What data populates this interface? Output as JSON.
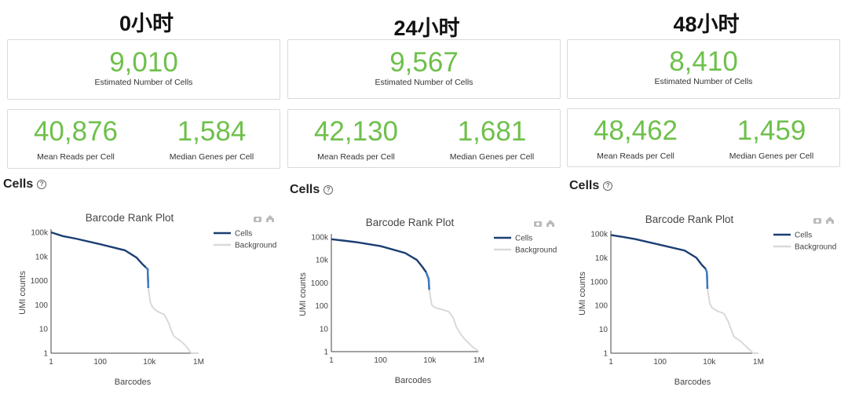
{
  "panels": [
    {
      "title": "0小时",
      "estimated_cells": "9,010",
      "estimated_cells_label": "Estimated Number of Cells",
      "mean_reads": "40,876",
      "mean_reads_label": "Mean Reads per Cell",
      "median_genes": "1,584",
      "median_genes_label": "Median Genes per Cell",
      "cells_heading": "Cells",
      "help_glyph": "?"
    },
    {
      "title": "24小时",
      "estimated_cells": "9,567",
      "estimated_cells_label": "Estimated Number of Cells",
      "mean_reads": "42,130",
      "mean_reads_label": "Mean Reads per Cell",
      "median_genes": "1,681",
      "median_genes_label": "Median Genes per Cell",
      "cells_heading": "Cells",
      "help_glyph": "?"
    },
    {
      "title": "48小时",
      "estimated_cells": "8,410",
      "estimated_cells_label": "Estimated Number of Cells",
      "mean_reads": "48,462",
      "mean_reads_label": "Mean Reads per Cell",
      "median_genes": "1,459",
      "median_genes_label": "Median Genes per Cell",
      "cells_heading": "Cells",
      "help_glyph": "?"
    }
  ],
  "colors": {
    "accent": "#6ec04b",
    "cells": "#1c3f73",
    "cells_tail": "#3d7cc4",
    "background": "#d9d9d9"
  },
  "icons": [
    "camera-icon",
    "home-icon"
  ],
  "chart_data": [
    {
      "type": "line",
      "title": "Barcode Rank Plot",
      "xlabel": "Barcodes",
      "ylabel": "UMI counts",
      "xscale": "log",
      "yscale": "log",
      "xlim": [
        1,
        1000000
      ],
      "ylim": [
        1,
        100000
      ],
      "xticks": [
        "1",
        "100",
        "10k",
        "1M"
      ],
      "yticks": [
        "1",
        "10",
        "100",
        "1000",
        "10k",
        "100k"
      ],
      "legend": "top-right",
      "series": [
        {
          "name": "Cells",
          "x": [
            1,
            3,
            10,
            100,
            1000,
            3000,
            5000,
            7000,
            8500,
            9010
          ],
          "y": [
            100000,
            70000,
            55000,
            32000,
            18000,
            9000,
            5000,
            3600,
            3000,
            500
          ]
        },
        {
          "name": "Background",
          "x": [
            9010,
            11000,
            14000,
            20000,
            40000,
            60000,
            80000,
            100000,
            200000,
            300000,
            500000,
            1000000
          ],
          "y": [
            500,
            120,
            75,
            55,
            40,
            18,
            8,
            5,
            3,
            2,
            1,
            1
          ]
        }
      ]
    },
    {
      "type": "line",
      "title": "Barcode Rank Plot",
      "xlabel": "Barcodes",
      "ylabel": "UMI counts",
      "xscale": "log",
      "yscale": "log",
      "xlim": [
        1,
        1000000
      ],
      "ylim": [
        1,
        100000
      ],
      "xticks": [
        "1",
        "100",
        "10k",
        "1M"
      ],
      "yticks": [
        "1",
        "10",
        "100",
        "1000",
        "10k",
        "100k"
      ],
      "legend": "top-right",
      "series": [
        {
          "name": "Cells",
          "x": [
            1,
            3,
            10,
            100,
            1000,
            3000,
            5000,
            7000,
            9000,
            9567
          ],
          "y": [
            80000,
            70000,
            60000,
            40000,
            20000,
            10000,
            5000,
            3000,
            1500,
            500
          ]
        },
        {
          "name": "Background",
          "x": [
            9567,
            12000,
            16000,
            30000,
            60000,
            90000,
            120000,
            200000,
            300000,
            600000,
            1000000
          ],
          "y": [
            500,
            110,
            85,
            70,
            55,
            30,
            12,
            5,
            3,
            1.5,
            1
          ]
        }
      ]
    },
    {
      "type": "line",
      "title": "Barcode Rank Plot",
      "xlabel": "Barcodes",
      "ylabel": "UMI counts",
      "xscale": "log",
      "yscale": "log",
      "xlim": [
        1,
        1000000
      ],
      "ylim": [
        1,
        100000
      ],
      "xticks": [
        "1",
        "100",
        "10k",
        "1M"
      ],
      "yticks": [
        "1",
        "10",
        "100",
        "1000",
        "10k",
        "100k"
      ],
      "legend": "top-right",
      "series": [
        {
          "name": "Cells",
          "x": [
            1,
            3,
            10,
            100,
            1000,
            3000,
            5000,
            7000,
            8000,
            8410
          ],
          "y": [
            90000,
            75000,
            60000,
            35000,
            20000,
            10000,
            5000,
            3500,
            2500,
            500
          ]
        },
        {
          "name": "Background",
          "x": [
            8410,
            10500,
            13000,
            20000,
            40000,
            60000,
            80000,
            100000,
            200000,
            300000,
            600000,
            1000000
          ],
          "y": [
            500,
            120,
            80,
            60,
            45,
            20,
            9,
            5,
            3,
            2,
            1,
            1
          ]
        }
      ]
    }
  ]
}
